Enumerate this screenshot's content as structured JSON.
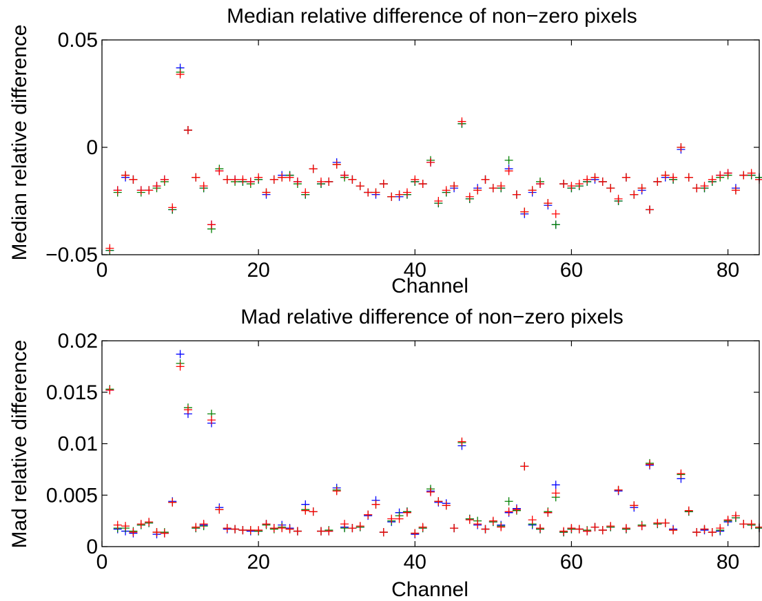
{
  "chart_data": [
    {
      "type": "scatter",
      "title": "Median relative difference of non−zero pixels",
      "xlabel": "Channel",
      "ylabel": "Median relative difference",
      "xlim": [
        0,
        84
      ],
      "ylim": [
        -0.05,
        0.05
      ],
      "xticks": [
        "0",
        "20",
        "40",
        "60",
        "80"
      ],
      "xtick_values": [
        0,
        20,
        40,
        60,
        80
      ],
      "yticks": [
        "−0.05",
        "0",
        "0.05"
      ],
      "ytick_values": [
        -0.05,
        0,
        0.05
      ],
      "marker": "plus",
      "colors": [
        "#0000ff",
        "#008000",
        "#ff0000"
      ],
      "x": [
        1,
        2,
        3,
        4,
        5,
        6,
        7,
        8,
        9,
        10,
        11,
        12,
        13,
        14,
        15,
        16,
        17,
        18,
        19,
        20,
        21,
        22,
        23,
        24,
        25,
        26,
        27,
        28,
        29,
        30,
        31,
        32,
        33,
        34,
        35,
        36,
        37,
        38,
        39,
        40,
        41,
        42,
        43,
        44,
        45,
        46,
        47,
        48,
        49,
        50,
        51,
        52,
        53,
        54,
        55,
        56,
        57,
        58,
        59,
        60,
        61,
        62,
        63,
        64,
        65,
        66,
        67,
        68,
        69,
        70,
        71,
        72,
        73,
        74,
        75,
        76,
        77,
        78,
        79,
        80,
        81,
        82,
        83,
        84
      ],
      "series": [
        {
          "values": [
            -0.048,
            -0.02,
            -0.014,
            -0.015,
            -0.02,
            -0.02,
            -0.018,
            -0.015,
            -0.029,
            0.037,
            0.008,
            -0.014,
            -0.019,
            -0.036,
            -0.011,
            -0.015,
            -0.015,
            -0.016,
            -0.016,
            -0.015,
            -0.022,
            -0.015,
            -0.013,
            -0.013,
            -0.016,
            -0.022,
            -0.01,
            -0.017,
            -0.016,
            -0.007,
            -0.013,
            -0.015,
            -0.018,
            -0.021,
            -0.022,
            -0.017,
            -0.023,
            -0.023,
            -0.022,
            -0.016,
            -0.017,
            -0.007,
            -0.026,
            -0.021,
            -0.019,
            0.011,
            -0.024,
            -0.019,
            -0.015,
            -0.019,
            -0.019,
            -0.01,
            -0.022,
            -0.031,
            -0.021,
            -0.017,
            -0.027,
            -0.036,
            -0.017,
            -0.019,
            -0.018,
            -0.016,
            -0.015,
            -0.016,
            -0.019,
            -0.025,
            -0.014,
            -0.022,
            -0.02,
            -0.029,
            -0.016,
            -0.014,
            -0.015,
            -0.001,
            -0.014,
            -0.019,
            -0.019,
            -0.016,
            -0.013,
            -0.012,
            -0.019,
            -0.013,
            -0.013,
            -0.014
          ]
        },
        {
          "values": [
            -0.048,
            -0.021,
            -0.013,
            -0.015,
            -0.021,
            -0.02,
            -0.019,
            -0.016,
            -0.029,
            0.035,
            0.008,
            -0.014,
            -0.019,
            -0.038,
            -0.01,
            -0.015,
            -0.016,
            -0.016,
            -0.017,
            -0.015,
            -0.021,
            -0.015,
            -0.014,
            -0.013,
            -0.017,
            -0.022,
            -0.01,
            -0.017,
            -0.016,
            -0.008,
            -0.014,
            -0.015,
            -0.018,
            -0.021,
            -0.021,
            -0.017,
            -0.023,
            -0.022,
            -0.022,
            -0.016,
            -0.017,
            -0.006,
            -0.026,
            -0.021,
            -0.018,
            0.011,
            -0.024,
            -0.02,
            -0.015,
            -0.019,
            -0.019,
            -0.006,
            -0.022,
            -0.03,
            -0.02,
            -0.016,
            -0.026,
            -0.036,
            -0.017,
            -0.019,
            -0.018,
            -0.016,
            -0.014,
            -0.016,
            -0.019,
            -0.025,
            -0.014,
            -0.022,
            -0.019,
            -0.029,
            -0.016,
            -0.013,
            -0.015,
            -0.0,
            -0.014,
            -0.019,
            -0.019,
            -0.016,
            -0.014,
            -0.013,
            -0.02,
            -0.013,
            -0.013,
            -0.014
          ]
        },
        {
          "values": [
            -0.047,
            -0.02,
            -0.013,
            -0.015,
            -0.02,
            -0.02,
            -0.018,
            -0.015,
            -0.028,
            0.034,
            0.008,
            -0.014,
            -0.018,
            -0.036,
            -0.011,
            -0.015,
            -0.015,
            -0.015,
            -0.016,
            -0.014,
            -0.021,
            -0.015,
            -0.014,
            -0.014,
            -0.016,
            -0.021,
            -0.01,
            -0.016,
            -0.016,
            -0.008,
            -0.013,
            -0.015,
            -0.018,
            -0.021,
            -0.021,
            -0.017,
            -0.023,
            -0.022,
            -0.021,
            -0.015,
            -0.017,
            -0.007,
            -0.025,
            -0.02,
            -0.018,
            0.012,
            -0.023,
            -0.02,
            -0.015,
            -0.019,
            -0.018,
            -0.011,
            -0.022,
            -0.03,
            -0.02,
            -0.017,
            -0.026,
            -0.031,
            -0.017,
            -0.018,
            -0.017,
            -0.015,
            -0.014,
            -0.016,
            -0.019,
            -0.024,
            -0.014,
            -0.022,
            -0.019,
            -0.029,
            -0.016,
            -0.013,
            -0.014,
            -0.0,
            -0.014,
            -0.019,
            -0.018,
            -0.015,
            -0.013,
            -0.012,
            -0.02,
            -0.013,
            -0.012,
            -0.015
          ]
        }
      ]
    },
    {
      "type": "scatter",
      "title": "Mad relative difference of non−zero pixels",
      "xlabel": "Channel",
      "ylabel": "Mad relative difference",
      "xlim": [
        0,
        84
      ],
      "ylim": [
        0,
        0.02
      ],
      "xticks": [
        "0",
        "20",
        "40",
        "60",
        "80"
      ],
      "xtick_values": [
        0,
        20,
        40,
        60,
        80
      ],
      "yticks": [
        "0",
        "0.005",
        "0.01",
        "0.015",
        "0.02"
      ],
      "ytick_values": [
        0,
        0.005,
        0.01,
        0.015,
        0.02
      ],
      "marker": "plus",
      "colors": [
        "#0000ff",
        "#008000",
        "#ff0000"
      ],
      "x": [
        1,
        2,
        3,
        4,
        5,
        6,
        7,
        8,
        9,
        10,
        11,
        12,
        13,
        14,
        15,
        16,
        17,
        18,
        19,
        20,
        21,
        22,
        23,
        24,
        25,
        26,
        27,
        28,
        29,
        30,
        31,
        32,
        33,
        34,
        35,
        36,
        37,
        38,
        39,
        40,
        41,
        42,
        43,
        44,
        45,
        46,
        47,
        48,
        49,
        50,
        51,
        52,
        53,
        54,
        55,
        56,
        57,
        58,
        59,
        60,
        61,
        62,
        63,
        64,
        65,
        66,
        67,
        68,
        69,
        70,
        71,
        72,
        73,
        74,
        75,
        76,
        77,
        78,
        79,
        80,
        81,
        82,
        83,
        84
      ],
      "series": [
        {
          "values": [
            0.0152,
            0.0017,
            0.0015,
            0.0013,
            0.0021,
            0.0023,
            0.0012,
            0.0013,
            0.0044,
            0.0187,
            0.0129,
            0.0018,
            0.0021,
            0.012,
            0.0038,
            0.0017,
            0.0017,
            0.0016,
            0.0015,
            0.0015,
            0.0022,
            0.0018,
            0.0021,
            0.0018,
            0.0015,
            0.0041,
            0.0034,
            0.0015,
            0.0015,
            0.0057,
            0.0019,
            0.0018,
            0.0019,
            0.003,
            0.0045,
            0.0014,
            0.0024,
            0.0033,
            0.0034,
            0.0012,
            0.0018,
            0.0054,
            0.0043,
            0.0042,
            0.0018,
            0.0098,
            0.0027,
            0.0021,
            0.0017,
            0.0024,
            0.0021,
            0.0033,
            0.0037,
            0.0078,
            0.0021,
            0.0017,
            0.0033,
            0.006,
            0.0014,
            0.0017,
            0.0017,
            0.0015,
            0.0019,
            0.0016,
            0.0019,
            0.0054,
            0.0017,
            0.0038,
            0.002,
            0.0079,
            0.0022,
            0.0023,
            0.0017,
            0.0066,
            0.0034,
            0.0014,
            0.0016,
            0.0014,
            0.0015,
            0.0024,
            0.0028,
            0.0022,
            0.0021,
            0.0018
          ]
        },
        {
          "values": [
            0.0153,
            0.0018,
            0.0018,
            0.0015,
            0.0021,
            0.0023,
            0.0014,
            0.0014,
            0.0043,
            0.0178,
            0.0135,
            0.0018,
            0.002,
            0.0129,
            0.0036,
            0.0018,
            0.0017,
            0.0016,
            0.0016,
            0.0015,
            0.0021,
            0.0017,
            0.0019,
            0.0017,
            0.0015,
            0.0036,
            0.0034,
            0.0015,
            0.0016,
            0.0055,
            0.0018,
            0.0018,
            0.0019,
            0.0031,
            0.0041,
            0.0014,
            0.0025,
            0.003,
            0.0034,
            0.0013,
            0.0018,
            0.0056,
            0.0044,
            0.004,
            0.0018,
            0.0101,
            0.0027,
            0.0025,
            0.0017,
            0.0024,
            0.002,
            0.0044,
            0.0035,
            0.0078,
            0.0022,
            0.0017,
            0.0034,
            0.0048,
            0.0014,
            0.0017,
            0.0017,
            0.0016,
            0.0019,
            0.0016,
            0.0019,
            0.0055,
            0.0017,
            0.004,
            0.0021,
            0.0081,
            0.0022,
            0.0023,
            0.0016,
            0.007,
            0.0034,
            0.0014,
            0.0017,
            0.0014,
            0.0016,
            0.0025,
            0.0028,
            0.0022,
            0.0021,
            0.0018
          ]
        },
        {
          "values": [
            0.0152,
            0.0021,
            0.002,
            0.0014,
            0.0022,
            0.0024,
            0.0014,
            0.0013,
            0.0043,
            0.0175,
            0.0133,
            0.0019,
            0.0022,
            0.0123,
            0.0036,
            0.0018,
            0.0017,
            0.0016,
            0.0016,
            0.0016,
            0.0022,
            0.0018,
            0.0018,
            0.0017,
            0.0015,
            0.0035,
            0.0034,
            0.0015,
            0.0015,
            0.0054,
            0.0022,
            0.0018,
            0.002,
            0.0031,
            0.0041,
            0.0014,
            0.0027,
            0.0027,
            0.0033,
            0.0013,
            0.0019,
            0.0053,
            0.0044,
            0.004,
            0.0018,
            0.0102,
            0.0026,
            0.0022,
            0.0017,
            0.0025,
            0.0019,
            0.0034,
            0.0036,
            0.0078,
            0.0026,
            0.0018,
            0.0033,
            0.0052,
            0.0015,
            0.0018,
            0.0017,
            0.0015,
            0.0019,
            0.0016,
            0.002,
            0.0055,
            0.0018,
            0.004,
            0.002,
            0.008,
            0.0023,
            0.0023,
            0.0016,
            0.0071,
            0.0035,
            0.0014,
            0.0017,
            0.0014,
            0.0018,
            0.0026,
            0.003,
            0.0022,
            0.0022,
            0.0019
          ]
        }
      ]
    }
  ]
}
